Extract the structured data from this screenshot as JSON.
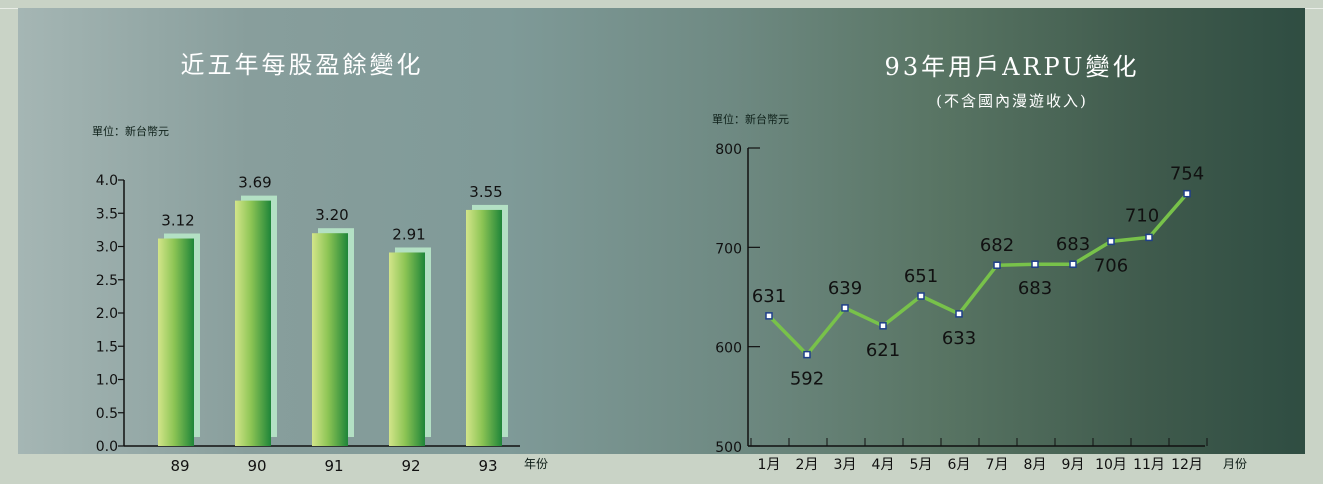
{
  "chart_data": [
    {
      "type": "bar",
      "title": "近五年每股盈餘變化",
      "unit_label": "單位：新台幣元",
      "xlabel": "年份",
      "ylabel": "",
      "categories": [
        "89",
        "90",
        "91",
        "92",
        "93"
      ],
      "values": [
        3.12,
        3.69,
        3.2,
        2.91,
        3.55
      ],
      "value_labels": [
        "3.12",
        "3.69",
        "3.20",
        "2.91",
        "3.55"
      ],
      "ylim": [
        0,
        4.0
      ],
      "yticks": [
        "0.0",
        "0.5",
        "1.0",
        "1.5",
        "2.0",
        "2.5",
        "3.0",
        "3.5",
        "4.0"
      ],
      "colors": {
        "bar_light": "#cde287",
        "bar_dark": "#1f8a3a",
        "bar_shadow": "#b4dfc2"
      }
    },
    {
      "type": "line",
      "title": "93年用戶ARPU變化",
      "subtitle": "(不含國內漫遊收入)",
      "unit_label": "單位：新台幣元",
      "xlabel": "月份",
      "ylabel": "",
      "categories": [
        "1月",
        "2月",
        "3月",
        "4月",
        "5月",
        "6月",
        "7月",
        "8月",
        "9月",
        "10月",
        "11月",
        "12月"
      ],
      "values": [
        631,
        592,
        639,
        621,
        651,
        633,
        682,
        683,
        683,
        706,
        710,
        754
      ],
      "value_labels": [
        "631",
        "592",
        "639",
        "621",
        "651",
        "633",
        "682",
        "683",
        "683",
        "706",
        "710",
        "754"
      ],
      "ylim": [
        500,
        800
      ],
      "yticks": [
        "500",
        "600",
        "700",
        "800"
      ],
      "colors": {
        "line": "#7cc24a",
        "marker_fill": "#ffffff",
        "marker_stroke": "#1f3f8a"
      }
    }
  ]
}
